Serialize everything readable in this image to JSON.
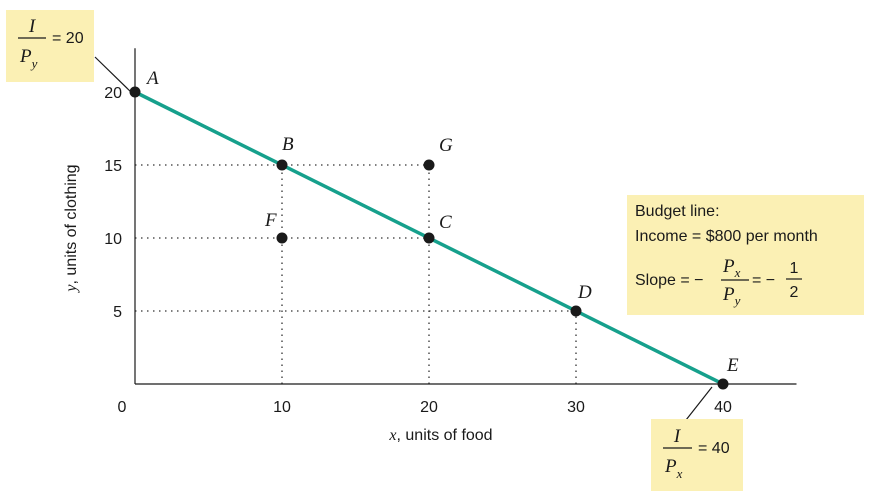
{
  "chart_data": {
    "type": "line",
    "xlabel_var": "x",
    "xlabel_text": ", units of food",
    "ylabel_var": "y",
    "ylabel_text": ", units of clothing",
    "xlim": [
      0,
      45
    ],
    "ylim": [
      0,
      23
    ],
    "x_ticks": [
      0,
      10,
      20,
      30,
      40
    ],
    "y_ticks": [
      5,
      10,
      15,
      20
    ],
    "grid": false,
    "colors": {
      "budget_line": "#16a08c",
      "points": "#1a1a1a",
      "callout_bg": "#fbf0b4"
    },
    "series": [
      {
        "x": [
          0,
          40
        ],
        "y": [
          20,
          0
        ]
      }
    ],
    "points": [
      {
        "label": "A",
        "x": 0,
        "y": 20
      },
      {
        "label": "B",
        "x": 10,
        "y": 15
      },
      {
        "label": "C",
        "x": 20,
        "y": 10
      },
      {
        "label": "D",
        "x": 30,
        "y": 5
      },
      {
        "label": "E",
        "x": 40,
        "y": 0
      },
      {
        "label": "F",
        "x": 10,
        "y": 10
      },
      {
        "label": "G",
        "x": 20,
        "y": 15
      }
    ],
    "guides": [
      {
        "from": [
          0,
          15
        ],
        "to": [
          20,
          15
        ]
      },
      {
        "from": [
          0,
          10
        ],
        "to": [
          20,
          10
        ]
      },
      {
        "from": [
          0,
          5
        ],
        "to": [
          30,
          5
        ]
      },
      {
        "from": [
          10,
          0
        ],
        "to": [
          10,
          15
        ]
      },
      {
        "from": [
          20,
          0
        ],
        "to": [
          20,
          15
        ]
      },
      {
        "from": [
          30,
          0
        ],
        "to": [
          30,
          5
        ]
      }
    ],
    "annotations": {
      "y_intercept": {
        "numerator": "I",
        "denominator": "P",
        "denominator_sub": "y",
        "value": "= 20"
      },
      "x_intercept": {
        "numerator": "I",
        "denominator": "P",
        "denominator_sub": "x",
        "value": "= 40"
      },
      "budget_box": {
        "line1": "Budget line:",
        "line2": "Income = $800 per month",
        "slope_prefix": "Slope = −",
        "slope_num": "P",
        "slope_num_sub": "x",
        "slope_den": "P",
        "slope_den_sub": "y",
        "slope_eq": "= −",
        "slope_frac_num": "1",
        "slope_frac_den": "2"
      }
    }
  }
}
